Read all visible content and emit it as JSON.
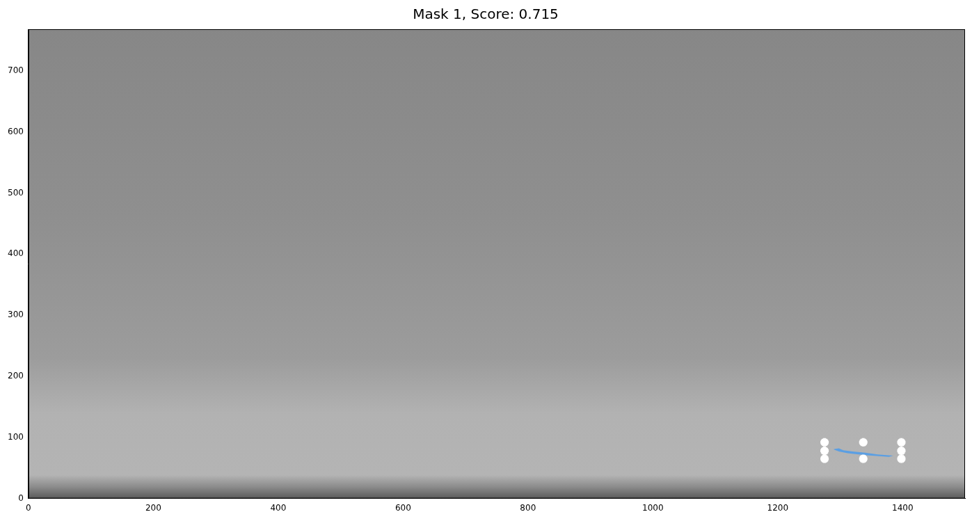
{
  "chart_data": {
    "type": "image",
    "title": "Mask 1, Score: 0.715",
    "xlim": [
      0,
      1500
    ],
    "xticks": [
      0,
      200,
      400,
      600,
      800,
      1000,
      1200,
      1400
    ],
    "ylim": [
      0,
      768
    ],
    "yticks": [
      0,
      100,
      200,
      300,
      400,
      500,
      600,
      700
    ],
    "grid": false,
    "mask": {
      "color": "#5b9fe3",
      "x": [
        1290,
        1298,
        1305,
        1320,
        1340,
        1360,
        1385,
        1378,
        1340,
        1312,
        1298,
        1290
      ],
      "y": [
        81,
        82,
        79,
        77,
        75,
        72,
        70,
        68,
        71,
        74,
        77,
        80
      ]
    },
    "points": {
      "marker": "star",
      "color": "#ff0000",
      "x": [
        1275,
        1275,
        1275,
        1337,
        1337,
        1398,
        1398,
        1398
      ],
      "y": [
        92,
        78,
        65,
        92,
        65,
        92,
        78,
        65
      ]
    }
  }
}
